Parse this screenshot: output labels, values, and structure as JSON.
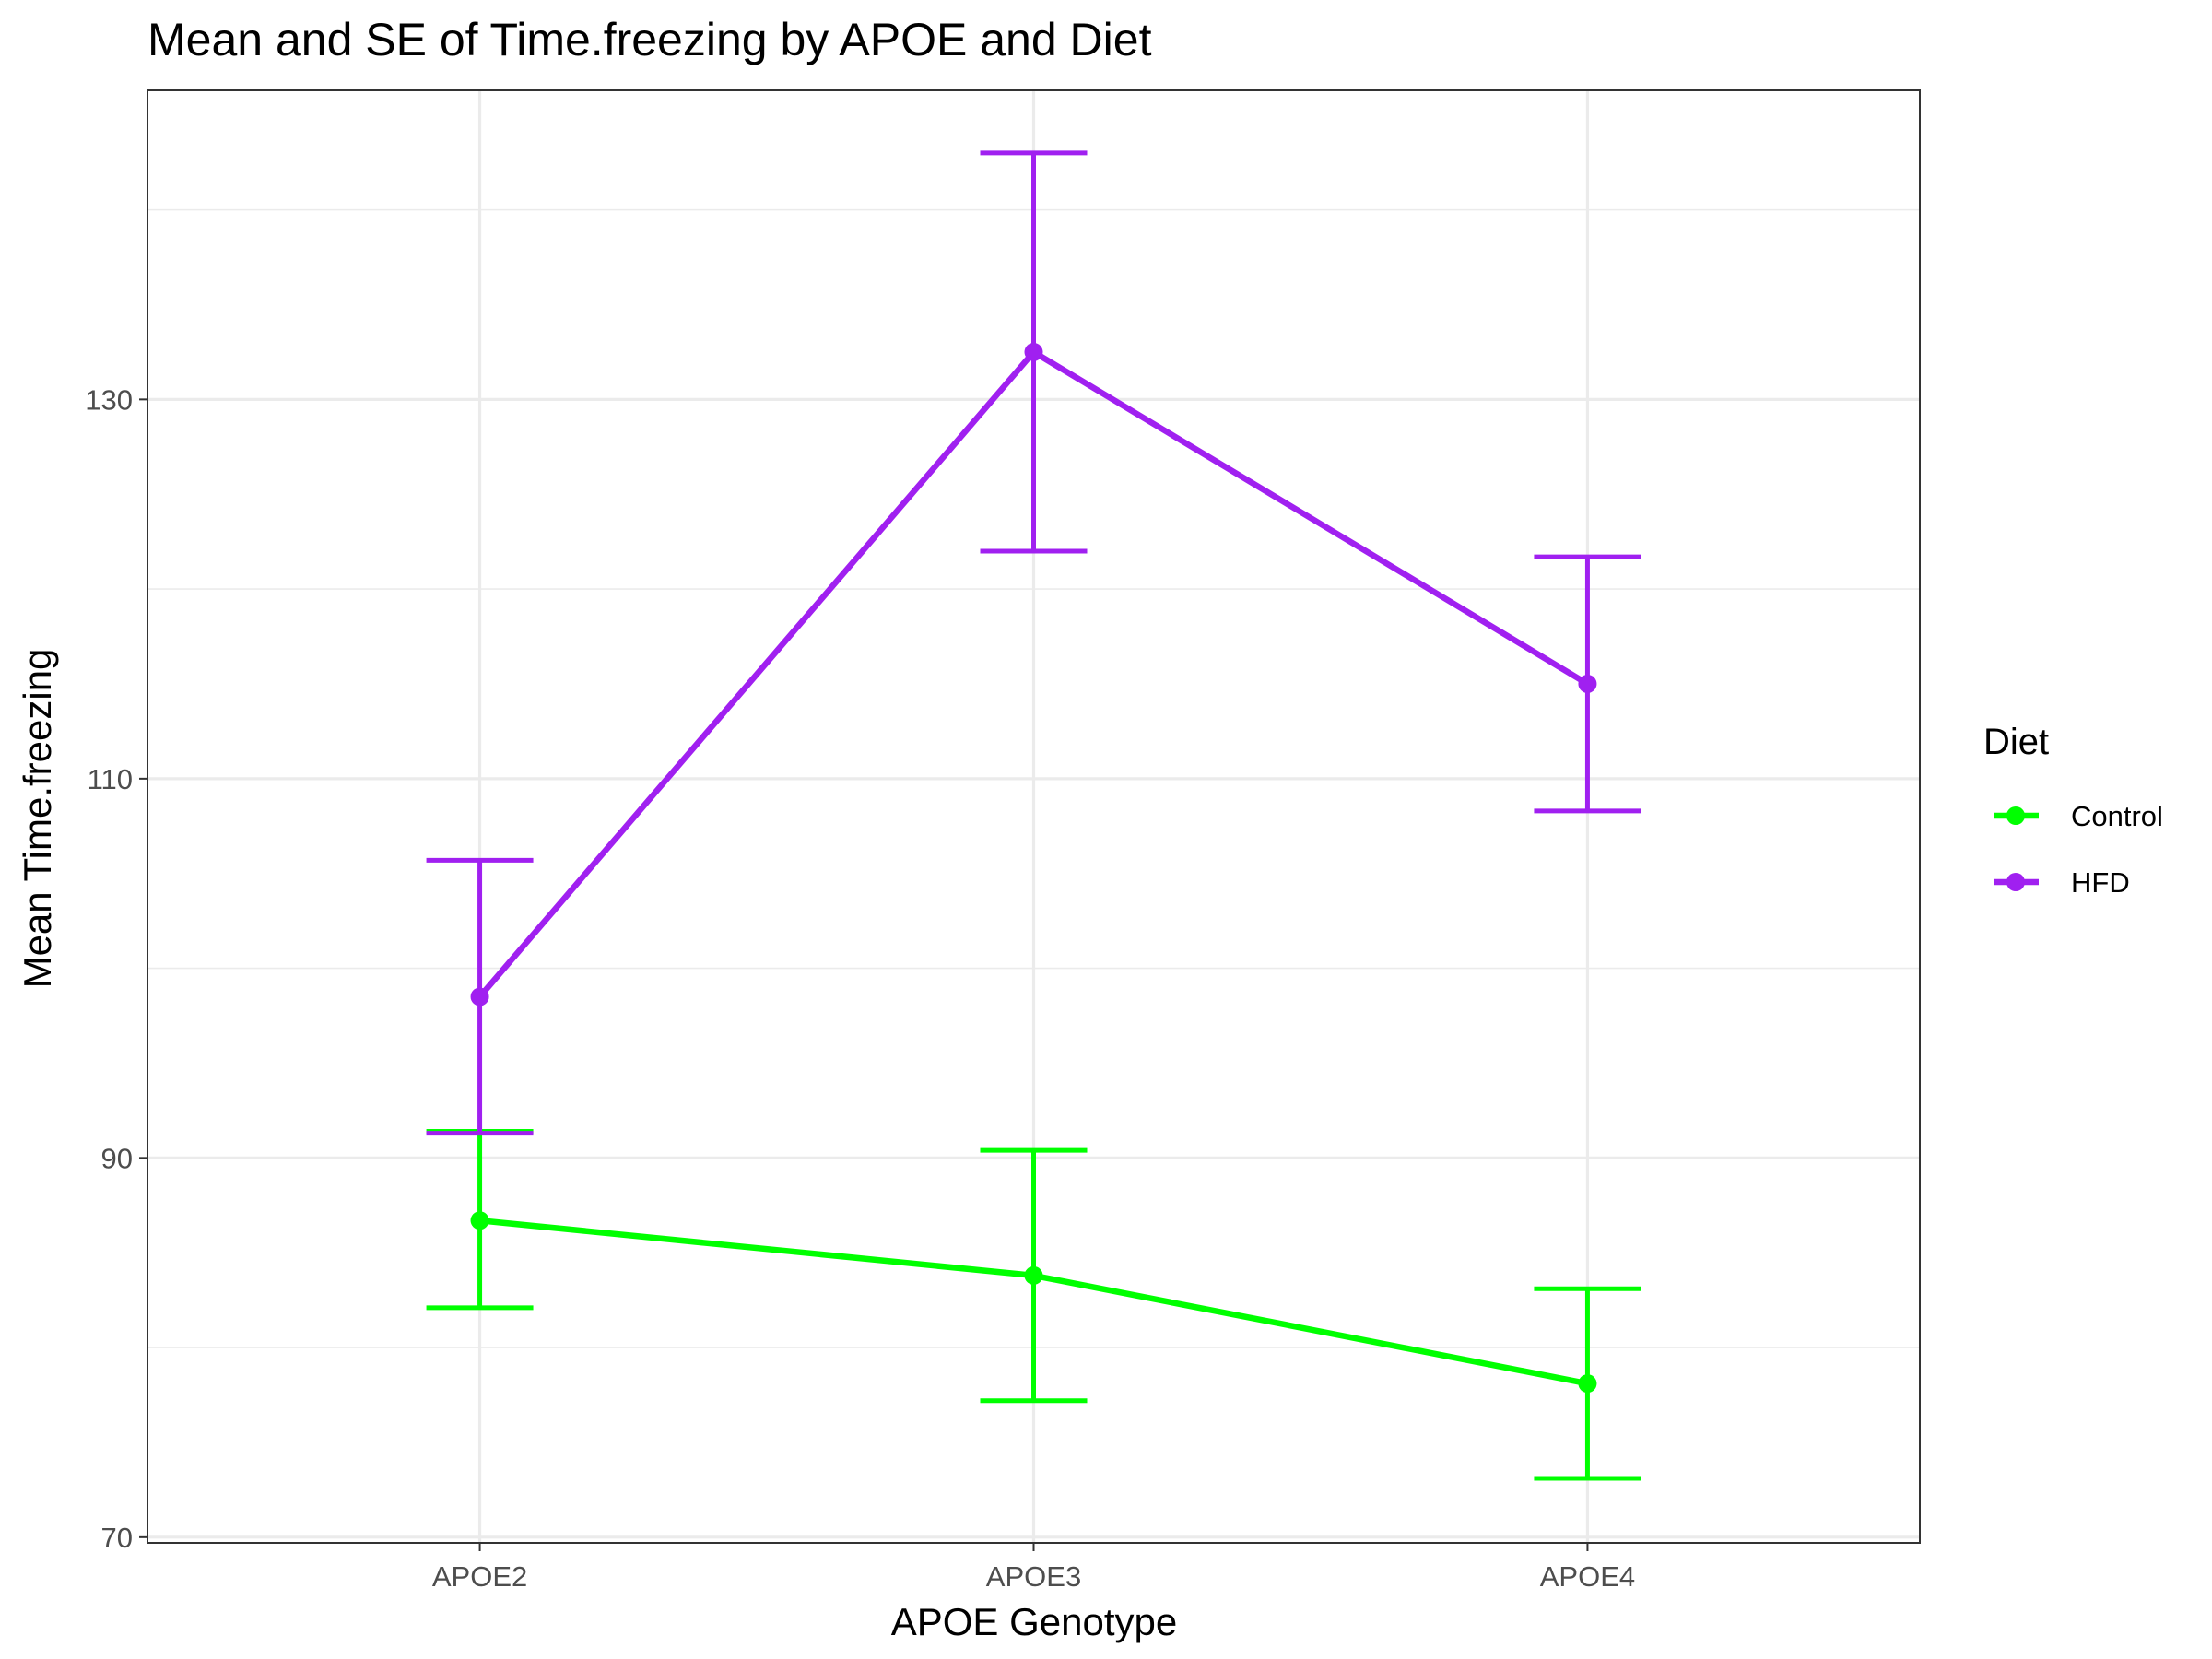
{
  "chart_data": {
    "type": "line",
    "title": "Mean and SE of Time.freezing by APOE and Diet",
    "xlabel": "APOE Genotype",
    "ylabel": "Mean Time.freezing",
    "categories": [
      "APOE2",
      "APOE3",
      "APOE4"
    ],
    "ylim": [
      69.7,
      146.3
    ],
    "yticks": [
      70,
      90,
      110,
      130
    ],
    "grid": true,
    "legend": {
      "title": "Diet",
      "position": "right"
    },
    "series": [
      {
        "name": "Control",
        "color": "#00ff00",
        "values": [
          86.7,
          83.8,
          78.1
        ],
        "lower": [
          82.1,
          77.2,
          73.1
        ],
        "upper": [
          91.4,
          90.4,
          83.1
        ]
      },
      {
        "name": "HFD",
        "color": "#a020f0",
        "values": [
          98.5,
          132.5,
          115.0
        ],
        "lower": [
          91.3,
          122.0,
          108.3
        ],
        "upper": [
          105.7,
          143.0,
          121.7
        ]
      }
    ]
  }
}
